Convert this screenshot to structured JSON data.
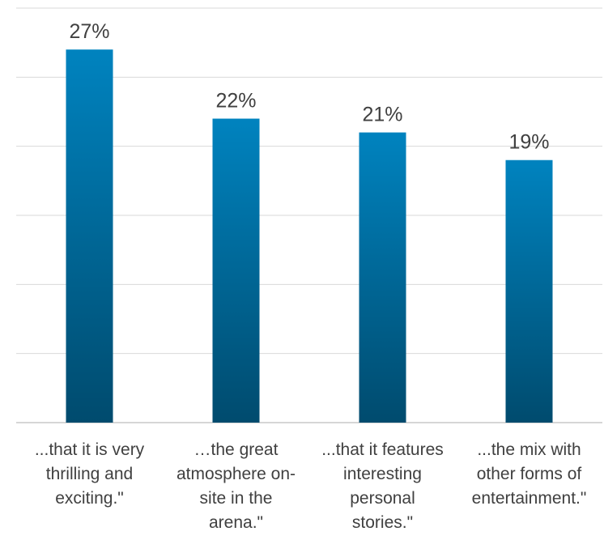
{
  "chart_data": {
    "type": "bar",
    "categories": [
      "...that it is very thrilling and exciting.\"",
      "…the great atmosphere on-site in the arena.\"",
      "...that it features interesting personal stories.\"",
      "...the mix with other forms of entertainment.\""
    ],
    "category_lines": [
      [
        "...that it is very",
        "thrilling and",
        "exciting.\""
      ],
      [
        "…the great",
        "atmosphere on-",
        "site in the",
        "arena.\""
      ],
      [
        "...that it features",
        "interesting",
        "personal",
        "stories.\""
      ],
      [
        "...the mix with",
        "other forms of",
        "entertainment.\""
      ]
    ],
    "values": [
      27,
      22,
      21,
      19
    ],
    "value_labels": [
      "27%",
      "22%",
      "21%",
      "19%"
    ],
    "ylim": [
      0,
      30
    ],
    "gridline_step": 5,
    "grid": true,
    "legend": "none",
    "colors": {
      "bar_top": "#0083bf",
      "bar_bottom": "#004b6e",
      "gridline": "#d9d9d9",
      "text": "#404040"
    }
  }
}
